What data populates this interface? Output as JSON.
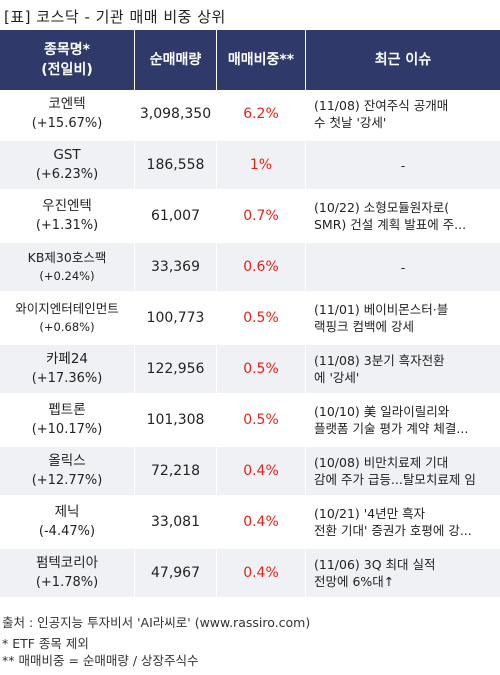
{
  "title": "[표] 코스닥 - 기관 매매 비중 상위",
  "headers": {
    "name": [
      "종목명*",
      "(전일비)"
    ],
    "volume": "순매매량",
    "ratio": "매매비중**",
    "issue": "최근 이슈"
  },
  "rows": [
    {
      "name": "코엔텍",
      "change": "(+15.67%)",
      "volume": "3,098,350",
      "ratio": "6.2%",
      "issue": [
        "(11/08) 잔여주식 공개매",
        "수 첫날 '강세'"
      ]
    },
    {
      "name": "GST",
      "change": "(+6.23%)",
      "volume": "186,558",
      "ratio": "1%",
      "issue": [
        "-"
      ]
    },
    {
      "name": "우진엔텍",
      "change": "(+1.31%)",
      "volume": "61,007",
      "ratio": "0.7%",
      "issue": [
        "(10/22) 소형모듈원자로(",
        "SMR) 건설 계획 발표에 주..."
      ]
    },
    {
      "name": "KB제30호스팩",
      "change": "(+0.24%)",
      "volume": "33,369",
      "ratio": "0.6%",
      "issue": [
        "-"
      ]
    },
    {
      "name": "와이지엔터테인먼트",
      "change": "(+0.68%)",
      "volume": "100,773",
      "ratio": "0.5%",
      "issue": [
        "(11/01) 베이비몬스터·블",
        "랙핑크 컴백에 강세"
      ]
    },
    {
      "name": "카페24",
      "change": "(+17.36%)",
      "volume": "122,956",
      "ratio": "0.5%",
      "issue": [
        "(11/08) 3분기 흑자전환",
        "에 '강세'"
      ]
    },
    {
      "name": "펩트론",
      "change": "(+10.17%)",
      "volume": "101,308",
      "ratio": "0.5%",
      "issue": [
        "(10/10) 美 일라이릴리와",
        " 플랫폼 기술 평가 계약 체결..."
      ]
    },
    {
      "name": "올릭스",
      "change": "(+12.77%)",
      "volume": "72,218",
      "ratio": "0.4%",
      "issue": [
        "(10/08) 비만치료제 기대",
        "감에 주가 급등...탈모치료제 임"
      ]
    },
    {
      "name": "제닉",
      "change": "(-4.47%)",
      "volume": "33,081",
      "ratio": "0.4%",
      "issue": [
        "(10/21) '4년만 흑자",
        "전환 기대' 증권가 호평에 강..."
      ]
    },
    {
      "name": "펌텍코리아",
      "change": "(+1.78%)",
      "volume": "47,967",
      "ratio": "0.4%",
      "issue": [
        "(11/06) 3Q 최대 실적",
        " 전망에 6%대↑"
      ]
    }
  ],
  "source": "출처 : 인공지능 투자비서 'AI라씨로' (www.rassiro.com)",
  "notes": [
    "* ETF 종목 제외",
    "** 매매비중 = 순매매량 / 상장주식수"
  ],
  "colors": {
    "header_bg": "#2f3a6b",
    "ratio_text": "#e0241b",
    "row_alt_bg": "#f0f1f5"
  }
}
